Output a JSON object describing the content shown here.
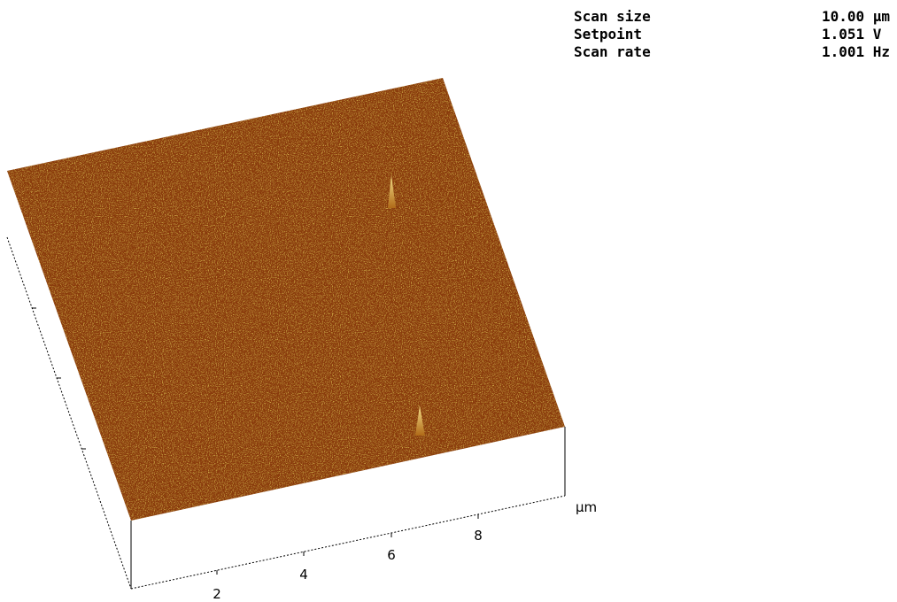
{
  "parameters": [
    {
      "label": "Scan size",
      "value": "10.00 µm"
    },
    {
      "label": "Setpoint",
      "value": "1.051 V"
    },
    {
      "label": "Scan rate",
      "value": "1.001 Hz"
    }
  ],
  "axis": {
    "ticks": [
      "2",
      "4",
      "6",
      "8"
    ],
    "unit": "µm"
  }
}
